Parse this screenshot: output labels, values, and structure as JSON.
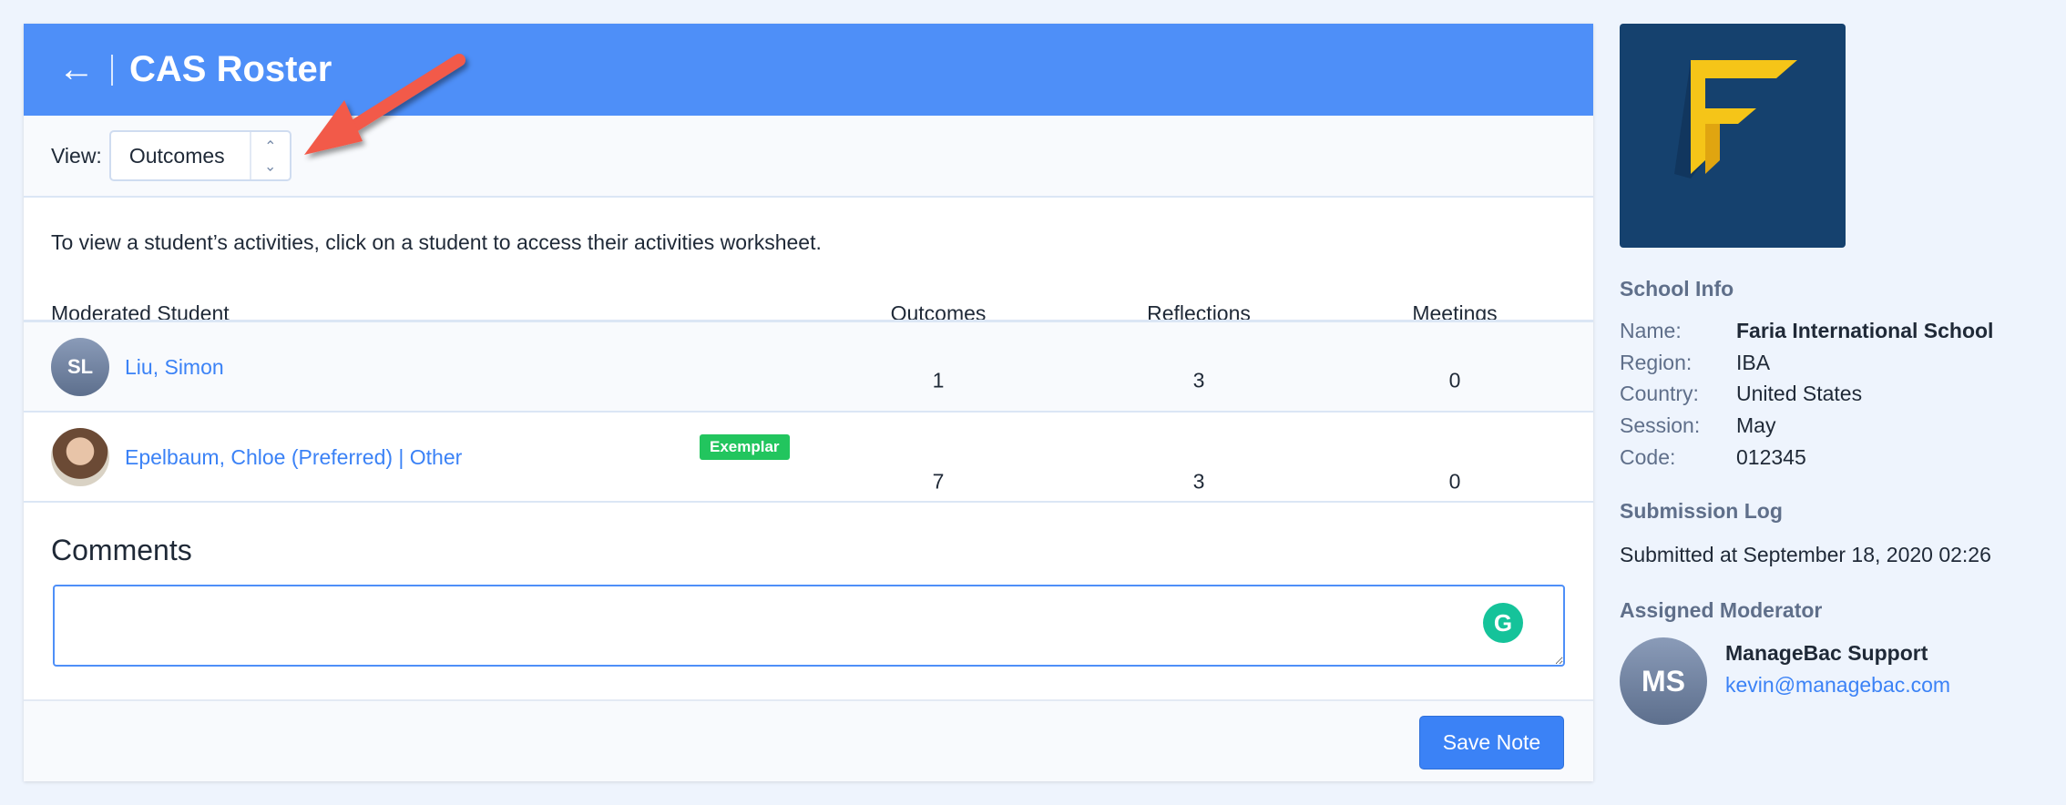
{
  "header": {
    "title": "CAS Roster",
    "back_icon": "arrow-left-icon"
  },
  "view": {
    "label": "View:",
    "selected": "Outcomes"
  },
  "instructions": "To view a student’s activities, click on a student to access their activities worksheet.",
  "table": {
    "columns": [
      "Moderated Student",
      "Outcomes",
      "Reflections",
      "Meetings"
    ],
    "rows": [
      {
        "initials": "SL",
        "name": "Liu, Simon",
        "badge": "",
        "outcomes": "1",
        "reflections": "3",
        "meetings": "0"
      },
      {
        "initials": "",
        "name": "Epelbaum, Chloe (Preferred) | Other",
        "badge": "Exemplar",
        "outcomes": "7",
        "reflections": "3",
        "meetings": "0"
      }
    ]
  },
  "comments": {
    "title": "Comments",
    "value": "",
    "save_label": "Save Note"
  },
  "sidebar": {
    "school_info_title": "School Info",
    "info": [
      {
        "label": "Name:",
        "value": "Faria International School"
      },
      {
        "label": "Region:",
        "value": "IBA"
      },
      {
        "label": "Country:",
        "value": "United States"
      },
      {
        "label": "Session:",
        "value": "May"
      },
      {
        "label": "Code:",
        "value": "012345"
      }
    ],
    "submission_title": "Submission Log",
    "submission_text": "Submitted at September 18, 2020 02:26",
    "moderator_title": "Assigned Moderator",
    "moderator": {
      "initials": "MS",
      "name": "ManageBac Support",
      "email": "kevin@managebac.com"
    }
  },
  "colors": {
    "header": "#4e8ff8",
    "link": "#3b82f6",
    "badge": "#22c55e",
    "annotation_arrow": "#f25a4a"
  }
}
